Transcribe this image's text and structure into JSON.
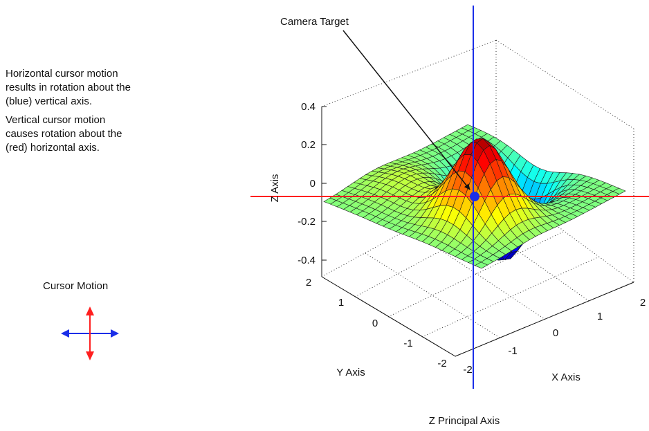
{
  "description": {
    "para1": [
      "Horizontal cursor motion",
      "results in rotation about the",
      "(blue) vertical axis."
    ],
    "para2": [
      "Vertical cursor motion",
      "causes rotation about the",
      "(red) horizontal axis."
    ]
  },
  "legend": {
    "title": "Cursor Motion"
  },
  "plot": {
    "annotation": "Camera Target",
    "caption": "Z Principal Axis",
    "z_axis": {
      "label": "Z Axis",
      "ticks": [
        "0.4",
        "0.2",
        "0",
        "-0.2",
        "-0.4"
      ]
    },
    "y_axis": {
      "label": "Y Axis",
      "ticks": [
        "2",
        "1",
        "0",
        "-1",
        "-2"
      ]
    },
    "x_axis": {
      "label": "X Axis",
      "ticks": [
        "-2",
        "-1",
        "0",
        "1",
        "2"
      ]
    }
  },
  "colors": {
    "vertical_axis": "#1a2ee8",
    "horizontal_axis": "#ff1f1f",
    "target": "#1a2ee8"
  }
}
